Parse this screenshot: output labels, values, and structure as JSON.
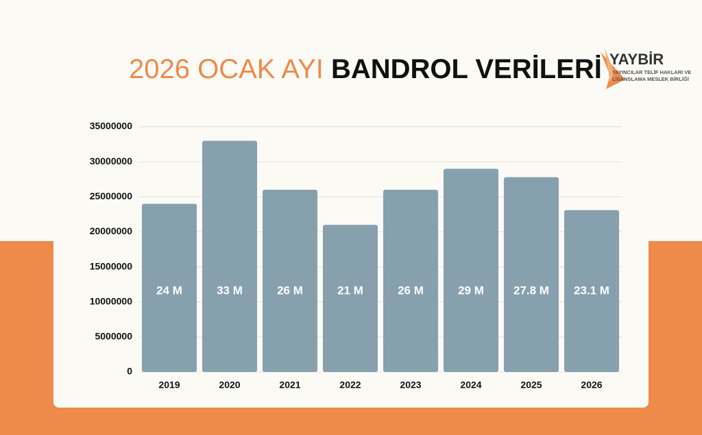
{
  "chart_data": {
    "type": "bar",
    "title_highlight": "2026 OCAK AYI",
    "title": "BANDROL VERİLERİ",
    "categories": [
      "2019",
      "2020",
      "2021",
      "2022",
      "2023",
      "2024",
      "2025",
      "2026"
    ],
    "values": [
      24000000,
      33000000,
      26000000,
      21000000,
      26000000,
      29000000,
      27800000,
      23100000
    ],
    "value_labels": [
      "24 M",
      "33 M",
      "26 M",
      "21 M",
      "26 M",
      "29 M",
      "27.8 M",
      "23.1 M"
    ],
    "color": "#87a0ad",
    "ylim": [
      0,
      35000000
    ],
    "yticks": [
      0,
      5000000,
      10000000,
      15000000,
      20000000,
      25000000,
      30000000,
      35000000
    ],
    "grid": true
  },
  "logo": {
    "name": "YAYBİR",
    "line1": "YAYINCILAR TELİF HAKLARI VE",
    "line2": "LİSANSLAMA MESLEK BİRLİĞİ"
  }
}
